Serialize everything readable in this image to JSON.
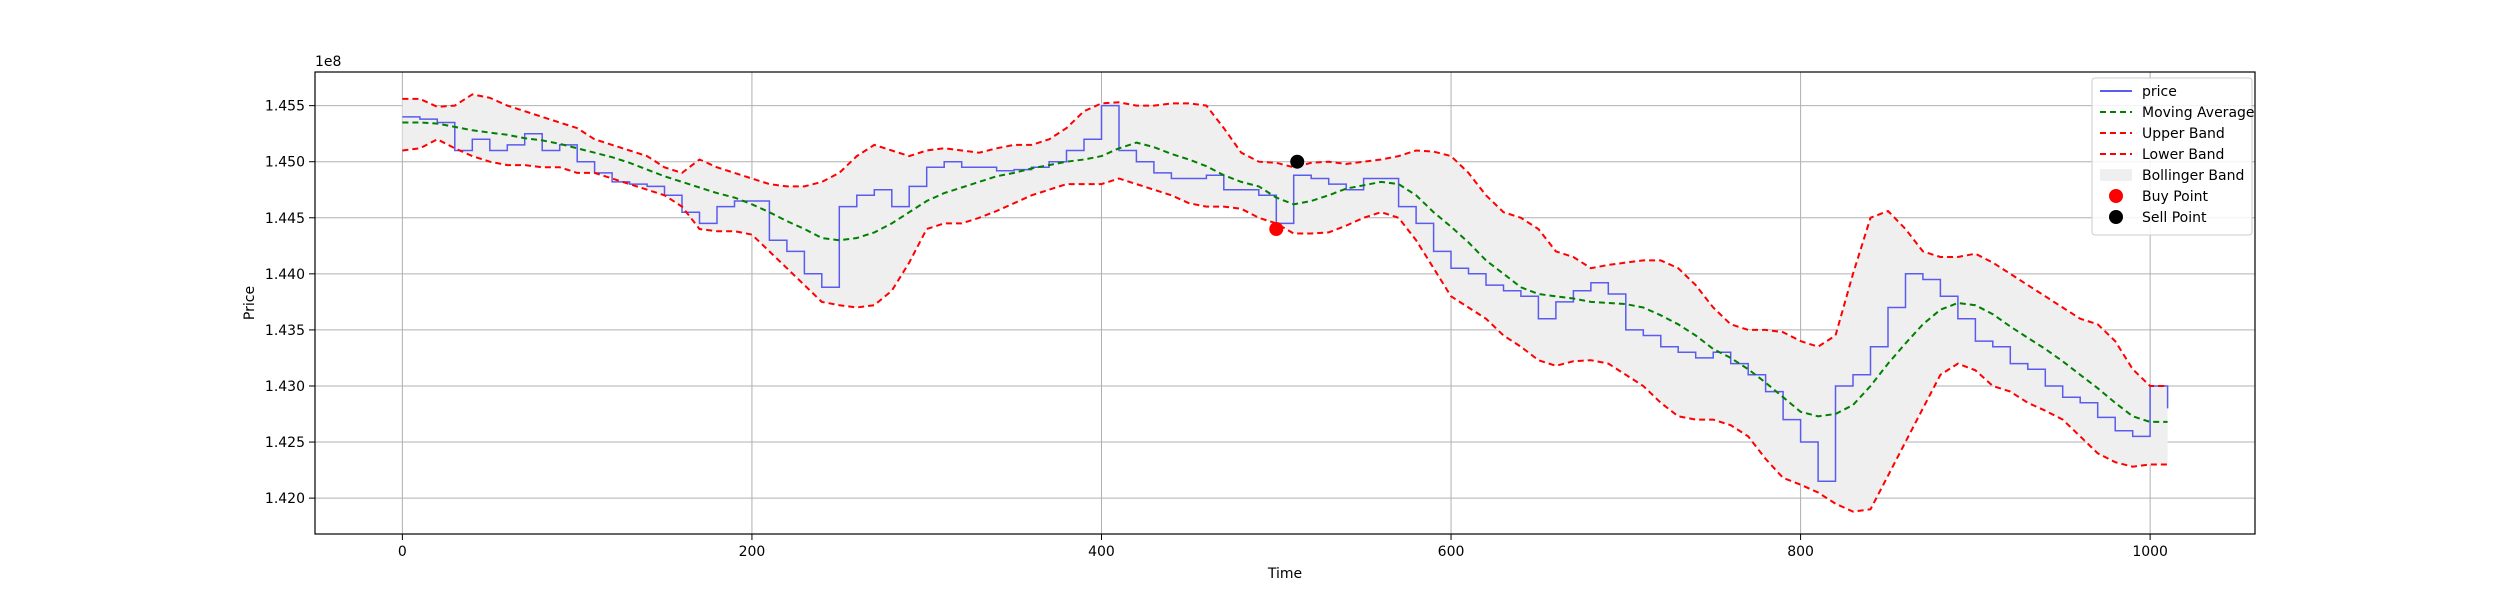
{
  "chart_data": {
    "type": "line",
    "xlabel": "Time",
    "ylabel": "Price",
    "offset_text": "1e8",
    "xlim": [
      -50,
      1060
    ],
    "ylim": [
      141680000.0,
      145800000.0
    ],
    "x_ticks": [
      0,
      200,
      400,
      600,
      800,
      1000
    ],
    "x_tick_labels": [
      "0",
      "200",
      "400",
      "600",
      "800",
      "1000"
    ],
    "y_ticks": [
      142000000.0,
      142500000.0,
      143000000.0,
      143500000.0,
      144000000.0,
      144500000.0,
      145000000.0,
      145500000.0
    ],
    "y_tick_labels": [
      "1.420",
      "1.425",
      "1.430",
      "1.435",
      "1.440",
      "1.445",
      "1.450",
      "1.455"
    ],
    "grid": true,
    "legend_position": "top-right",
    "x_end": 1010,
    "colors": {
      "price": "#5b5bf0",
      "moving_average": "#008000",
      "upper_band": "#ff0000",
      "lower_band": "#ff0000",
      "band_fill": "#efefef",
      "buy_point": "#ff0000",
      "sell_point": "#000000"
    },
    "series": [
      {
        "name": "price",
        "style": "solid",
        "color": "#5b5bf0",
        "x": [
          0,
          10,
          20,
          30,
          40,
          50,
          60,
          70,
          80,
          90,
          100,
          110,
          120,
          130,
          140,
          150,
          160,
          170,
          180,
          190,
          200,
          210,
          220,
          230,
          240,
          250,
          260,
          270,
          280,
          290,
          300,
          310,
          320,
          330,
          340,
          350,
          360,
          370,
          380,
          390,
          400,
          410,
          420,
          430,
          440,
          450,
          460,
          470,
          480,
          490,
          500,
          510,
          520,
          530,
          540,
          550,
          560,
          570,
          580,
          590,
          600,
          610,
          620,
          630,
          640,
          650,
          660,
          670,
          680,
          690,
          700,
          710,
          720,
          730,
          740,
          750,
          760,
          770,
          780,
          790,
          800,
          810,
          820,
          830,
          840,
          850,
          860,
          870,
          880,
          890,
          900,
          910,
          920,
          930,
          940,
          950,
          960,
          970,
          980,
          990,
          1000,
          1010
        ],
        "y": [
          145400000.0,
          145380000.0,
          145350000.0,
          145100000.0,
          145200000.0,
          145100000.0,
          145150000.0,
          145250000.0,
          145100000.0,
          145150000.0,
          145000000.0,
          144900000.0,
          144820000.0,
          144800000.0,
          144780000.0,
          144700000.0,
          144550000.0,
          144450000.0,
          144600000.0,
          144650000.0,
          144650000.0,
          144300000.0,
          144200000.0,
          144000000.0,
          143880000.0,
          144600000.0,
          144700000.0,
          144750000.0,
          144600000.0,
          144780000.0,
          144950000.0,
          145000000.0,
          144950000.0,
          144950000.0,
          144920000.0,
          144930000.0,
          144950000.0,
          145000000.0,
          145100000.0,
          145200000.0,
          145500000.0,
          145100000.0,
          145000000.0,
          144900000.0,
          144850000.0,
          144850000.0,
          144880000.0,
          144750000.0,
          144750000.0,
          144700000.0,
          144450000.0,
          144880000.0,
          144850000.0,
          144800000.0,
          144750000.0,
          144850000.0,
          144850000.0,
          144600000.0,
          144450000.0,
          144200000.0,
          144050000.0,
          144000000.0,
          143900000.0,
          143850000.0,
          143800000.0,
          143600000.0,
          143750000.0,
          143850000.0,
          143920000.0,
          143820000.0,
          143500000.0,
          143450000.0,
          143350000.0,
          143300000.0,
          143250000.0,
          143300000.0,
          143200000.0,
          143100000.0,
          142950000.0,
          142700000.0,
          142500000.0,
          142150000.0,
          143000000.0,
          143100000.0,
          143350000.0,
          143700000.0,
          144000000.0,
          143950000.0,
          143800000.0,
          143600000.0,
          143400000.0,
          143350000.0,
          143200000.0,
          143150000.0,
          143000000.0,
          142900000.0,
          142850000.0,
          142720000.0,
          142600000.0,
          142550000.0,
          143000000.0,
          142800000.0
        ]
      },
      {
        "name": "Moving Average",
        "style": "dashed",
        "color": "#008000",
        "x": [
          0,
          10,
          20,
          30,
          40,
          50,
          60,
          70,
          80,
          90,
          100,
          110,
          120,
          130,
          140,
          150,
          160,
          170,
          180,
          190,
          200,
          210,
          220,
          230,
          240,
          250,
          260,
          270,
          280,
          290,
          300,
          310,
          320,
          330,
          340,
          350,
          360,
          370,
          380,
          390,
          400,
          410,
          420,
          430,
          440,
          450,
          460,
          470,
          480,
          490,
          500,
          510,
          520,
          530,
          540,
          550,
          560,
          570,
          580,
          590,
          600,
          610,
          620,
          630,
          640,
          650,
          660,
          670,
          680,
          690,
          700,
          710,
          720,
          730,
          740,
          750,
          760,
          770,
          780,
          790,
          800,
          810,
          820,
          830,
          840,
          850,
          860,
          870,
          880,
          890,
          900,
          910,
          920,
          930,
          940,
          950,
          960,
          970,
          980,
          990,
          1000,
          1010
        ],
        "y": [
          145350000.0,
          145350000.0,
          145340000.0,
          145310000.0,
          145280000.0,
          145260000.0,
          145240000.0,
          145210000.0,
          145190000.0,
          145160000.0,
          145120000.0,
          145080000.0,
          145040000.0,
          144990000.0,
          144930000.0,
          144870000.0,
          144820000.0,
          144770000.0,
          144720000.0,
          144680000.0,
          144620000.0,
          144550000.0,
          144470000.0,
          144400000.0,
          144320000.0,
          144300000.0,
          144320000.0,
          144370000.0,
          144450000.0,
          144550000.0,
          144650000.0,
          144720000.0,
          144770000.0,
          144820000.0,
          144870000.0,
          144900000.0,
          144940000.0,
          144970000.0,
          145000000.0,
          145020000.0,
          145050000.0,
          145120000.0,
          145170000.0,
          145130000.0,
          145070000.0,
          145020000.0,
          144960000.0,
          144880000.0,
          144820000.0,
          144780000.0,
          144680000.0,
          144620000.0,
          144650000.0,
          144700000.0,
          144760000.0,
          144790000.0,
          144820000.0,
          144800000.0,
          144700000.0,
          144550000.0,
          144420000.0,
          144280000.0,
          144120000.0,
          144000000.0,
          143880000.0,
          143820000.0,
          143800000.0,
          143780000.0,
          143750000.0,
          143740000.0,
          143730000.0,
          143700000.0,
          143630000.0,
          143550000.0,
          143450000.0,
          143330000.0,
          143250000.0,
          143150000.0,
          143030000.0,
          142900000.0,
          142770000.0,
          142730000.0,
          142750000.0,
          142830000.0,
          143000000.0,
          143200000.0,
          143380000.0,
          143550000.0,
          143680000.0,
          143740000.0,
          143720000.0,
          143640000.0,
          143530000.0,
          143430000.0,
          143330000.0,
          143220000.0,
          143100000.0,
          142980000.0,
          142850000.0,
          142730000.0,
          142680000.0,
          142680000.0
        ]
      },
      {
        "name": "Upper Band",
        "style": "dashed",
        "color": "#ff0000",
        "x": [
          0,
          10,
          20,
          30,
          40,
          50,
          60,
          70,
          80,
          90,
          100,
          110,
          120,
          130,
          140,
          150,
          160,
          170,
          180,
          190,
          200,
          210,
          220,
          230,
          240,
          250,
          260,
          270,
          280,
          290,
          300,
          310,
          320,
          330,
          340,
          350,
          360,
          370,
          380,
          390,
          400,
          410,
          420,
          430,
          440,
          450,
          460,
          470,
          480,
          490,
          500,
          510,
          520,
          530,
          540,
          550,
          560,
          570,
          580,
          590,
          600,
          610,
          620,
          630,
          640,
          650,
          660,
          670,
          680,
          690,
          700,
          710,
          720,
          730,
          740,
          750,
          760,
          770,
          780,
          790,
          800,
          810,
          820,
          830,
          840,
          850,
          860,
          870,
          880,
          890,
          900,
          910,
          920,
          930,
          940,
          950,
          960,
          970,
          980,
          990,
          1000,
          1010
        ],
        "y": [
          145560000.0,
          145560000.0,
          145490000.0,
          145500000.0,
          145600000.0,
          145570000.0,
          145500000.0,
          145450000.0,
          145400000.0,
          145350000.0,
          145300000.0,
          145200000.0,
          145150000.0,
          145100000.0,
          145050000.0,
          144950000.0,
          144900000.0,
          145020000.0,
          144950000.0,
          144900000.0,
          144850000.0,
          144800000.0,
          144780000.0,
          144780000.0,
          144820000.0,
          144900000.0,
          145050000.0,
          145150000.0,
          145100000.0,
          145050000.0,
          145100000.0,
          145120000.0,
          145100000.0,
          145080000.0,
          145120000.0,
          145150000.0,
          145150000.0,
          145200000.0,
          145300000.0,
          145450000.0,
          145520000.0,
          145530000.0,
          145500000.0,
          145500000.0,
          145520000.0,
          145520000.0,
          145500000.0,
          145300000.0,
          145080000.0,
          145000000.0,
          144990000.0,
          144950000.0,
          144990000.0,
          145000000.0,
          144980000.0,
          145000000.0,
          145020000.0,
          145050000.0,
          145100000.0,
          145090000.0,
          145050000.0,
          144900000.0,
          144700000.0,
          144550000.0,
          144500000.0,
          144400000.0,
          144200000.0,
          144150000.0,
          144050000.0,
          144080000.0,
          144100000.0,
          144120000.0,
          144120000.0,
          144050000.0,
          143900000.0,
          143700000.0,
          143550000.0,
          143500000.0,
          143500000.0,
          143480000.0,
          143400000.0,
          143350000.0,
          143450000.0,
          144000000.0,
          144500000.0,
          144560000.0,
          144400000.0,
          144200000.0,
          144150000.0,
          144150000.0,
          144180000.0,
          144100000.0,
          144000000.0,
          143900000.0,
          143800000.0,
          143700000.0,
          143600000.0,
          143550000.0,
          143400000.0,
          143150000.0,
          143000000.0,
          143000000.0
        ]
      },
      {
        "name": "Lower Band",
        "style": "dashed",
        "color": "#ff0000",
        "x": [
          0,
          10,
          20,
          30,
          40,
          50,
          60,
          70,
          80,
          90,
          100,
          110,
          120,
          130,
          140,
          150,
          160,
          170,
          180,
          190,
          200,
          210,
          220,
          230,
          240,
          250,
          260,
          270,
          280,
          290,
          300,
          310,
          320,
          330,
          340,
          350,
          360,
          370,
          380,
          390,
          400,
          410,
          420,
          430,
          440,
          450,
          460,
          470,
          480,
          490,
          500,
          510,
          520,
          530,
          540,
          550,
          560,
          570,
          580,
          590,
          600,
          610,
          620,
          630,
          640,
          650,
          660,
          670,
          680,
          690,
          700,
          710,
          720,
          730,
          740,
          750,
          760,
          770,
          780,
          790,
          800,
          810,
          820,
          830,
          840,
          850,
          860,
          870,
          880,
          890,
          900,
          910,
          920,
          930,
          940,
          950,
          960,
          970,
          980,
          990,
          1000,
          1010
        ],
        "y": [
          145100000.0,
          145120000.0,
          145200000.0,
          145120000.0,
          145050000.0,
          145000000.0,
          144970000.0,
          144970000.0,
          144950000.0,
          144950000.0,
          144900000.0,
          144900000.0,
          144850000.0,
          144800000.0,
          144750000.0,
          144700000.0,
          144600000.0,
          144400000.0,
          144380000.0,
          144380000.0,
          144350000.0,
          144200000.0,
          144050000.0,
          143900000.0,
          143750000.0,
          143720000.0,
          143700000.0,
          143720000.0,
          143850000.0,
          144100000.0,
          144400000.0,
          144450000.0,
          144450000.0,
          144500000.0,
          144560000.0,
          144630000.0,
          144700000.0,
          144750000.0,
          144800000.0,
          144800000.0,
          144800000.0,
          144850000.0,
          144800000.0,
          144750000.0,
          144700000.0,
          144630000.0,
          144600000.0,
          144600000.0,
          144580000.0,
          144500000.0,
          144450000.0,
          144360000.0,
          144360000.0,
          144370000.0,
          144430000.0,
          144500000.0,
          144550000.0,
          144500000.0,
          144300000.0,
          144050000.0,
          143800000.0,
          143700000.0,
          143600000.0,
          143450000.0,
          143350000.0,
          143230000.0,
          143180000.0,
          143220000.0,
          143230000.0,
          143200000.0,
          143100000.0,
          143000000.0,
          142850000.0,
          142730000.0,
          142700000.0,
          142700000.0,
          142650000.0,
          142550000.0,
          142350000.0,
          142180000.0,
          142120000.0,
          142050000.0,
          141950000.0,
          141880000.0,
          141900000.0,
          142200000.0,
          142500000.0,
          142800000.0,
          143100000.0,
          143200000.0,
          143140000.0,
          143000000.0,
          142950000.0,
          142850000.0,
          142780000.0,
          142700000.0,
          142550000.0,
          142400000.0,
          142320000.0,
          142280000.0,
          142300000.0,
          142300000.0
        ]
      }
    ],
    "band_fill_name": "Bollinger Band",
    "points": [
      {
        "name": "Buy Point",
        "color": "#ff0000",
        "x": [
          500
        ],
        "y": [
          144400000.0
        ]
      },
      {
        "name": "Sell Point",
        "color": "#000000",
        "x": [
          512
        ],
        "y": [
          145000000.0
        ]
      }
    ],
    "legend": [
      {
        "label": "price",
        "kind": "line",
        "color": "#5b5bf0",
        "style": "solid"
      },
      {
        "label": "Moving Average",
        "kind": "line",
        "color": "#008000",
        "style": "dashed"
      },
      {
        "label": "Upper Band",
        "kind": "line",
        "color": "#ff0000",
        "style": "dashed"
      },
      {
        "label": "Lower Band",
        "kind": "line",
        "color": "#ff0000",
        "style": "dashed"
      },
      {
        "label": "Bollinger Band",
        "kind": "patch",
        "color": "#efefef"
      },
      {
        "label": "Buy Point",
        "kind": "marker",
        "color": "#ff0000"
      },
      {
        "label": "Sell Point",
        "kind": "marker",
        "color": "#000000"
      }
    ]
  }
}
